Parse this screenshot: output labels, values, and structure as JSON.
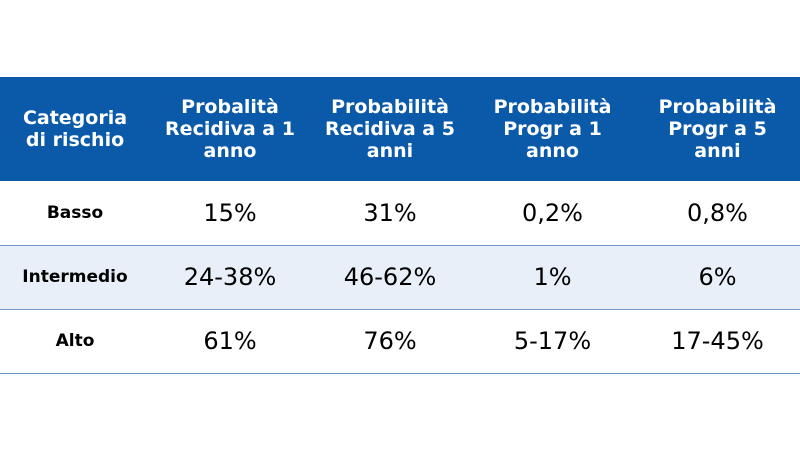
{
  "table": {
    "headers": [
      [
        "Categoria",
        "di rischio"
      ],
      [
        "Probalità",
        "Recidiva a 1",
        "anno"
      ],
      [
        "Probabilità",
        "Recidiva a 5",
        "anni"
      ],
      [
        "Probabilità",
        "Progr a 1",
        "anno"
      ],
      [
        "Probabilità",
        "Progr a 5",
        "anni"
      ]
    ],
    "rows": [
      {
        "category": "Basso",
        "values": [
          "15%",
          "31%",
          "0,2%",
          "0,8%"
        ]
      },
      {
        "category": "Intermedio",
        "values": [
          "24-38%",
          "46-62%",
          "1%",
          "6%"
        ]
      },
      {
        "category": "Alto",
        "values": [
          "61%",
          "76%",
          "5-17%",
          "17-45%"
        ]
      }
    ],
    "colors": {
      "header_bg": "#0a5aa9",
      "header_text": "#ffffff",
      "row_alt_bg": "#e9eff8",
      "row_border": "#6f96c6"
    }
  }
}
